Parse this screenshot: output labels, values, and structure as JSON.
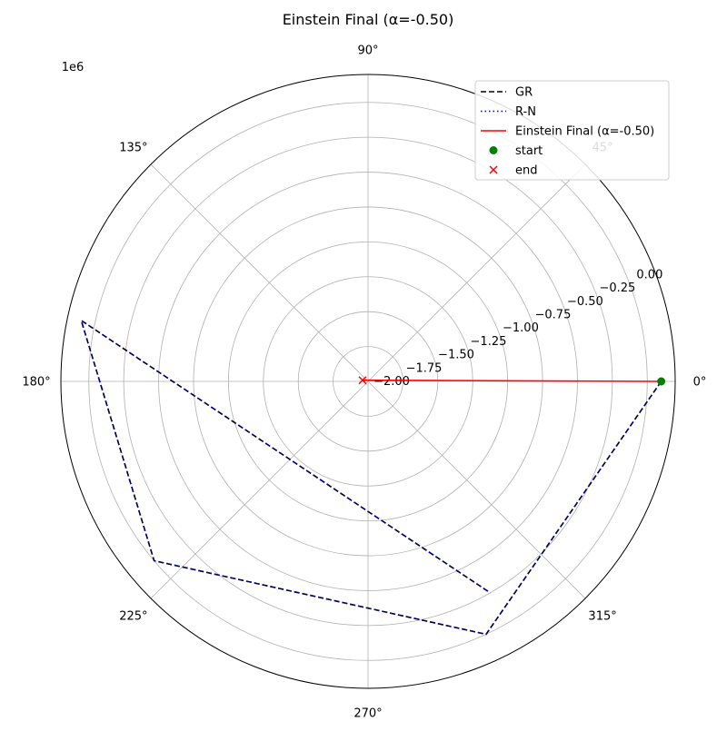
{
  "chart_data": {
    "type": "line",
    "projection": "polar",
    "title": "Einstein Final (α=-0.50)",
    "radial_axis": {
      "offset_label": "1e6",
      "rlim": [
        -2.0,
        0.2
      ],
      "ticks": [
        -2.0,
        -1.75,
        -1.5,
        -1.25,
        -1.0,
        -0.75,
        -0.5,
        -0.25,
        0.0
      ],
      "tick_labels": [
        "−2.00",
        "−1.75",
        "−1.50",
        "−1.25",
        "−1.00",
        "−0.75",
        "−0.50",
        "−0.25",
        "0.00"
      ]
    },
    "angular_axis": {
      "ticks_deg": [
        0,
        45,
        90,
        135,
        180,
        225,
        270,
        315
      ],
      "tick_labels": [
        "0°",
        "45°",
        "90°",
        "135°",
        "180°",
        "225°",
        "270°",
        "315°"
      ]
    },
    "grid": true,
    "legend_location": "upper right",
    "series": [
      {
        "name": "GR",
        "style": "dashed",
        "color": "#000000",
        "points": [
          {
            "theta_deg": 0,
            "r": 0.1
          },
          {
            "theta_deg": 295,
            "r": 0.0
          },
          {
            "theta_deg": 220,
            "r": 0.0
          },
          {
            "theta_deg": 168,
            "r": 0.1
          },
          {
            "theta_deg": 300,
            "r": -0.25
          }
        ]
      },
      {
        "name": "R-N",
        "style": "dotted",
        "color": "#0000cc",
        "points": [
          {
            "theta_deg": 0,
            "r": 0.1
          },
          {
            "theta_deg": 295,
            "r": 0.0
          },
          {
            "theta_deg": 220,
            "r": 0.0
          },
          {
            "theta_deg": 168,
            "r": 0.1
          },
          {
            "theta_deg": 300,
            "r": -0.25
          }
        ]
      },
      {
        "name": "Einstein Final (α=-0.50)",
        "style": "solid",
        "color": "#ff0000",
        "points": [
          {
            "theta_deg": 0,
            "r": 0.1
          },
          {
            "theta_deg": 168,
            "r": -1.96
          }
        ]
      }
    ],
    "markers": [
      {
        "name": "start",
        "marker": "circle",
        "color": "#008000",
        "theta_deg": 0,
        "r": 0.1
      },
      {
        "name": "end",
        "marker": "x",
        "color": "#ff0000",
        "theta_deg": 168,
        "r": -1.96
      }
    ]
  }
}
